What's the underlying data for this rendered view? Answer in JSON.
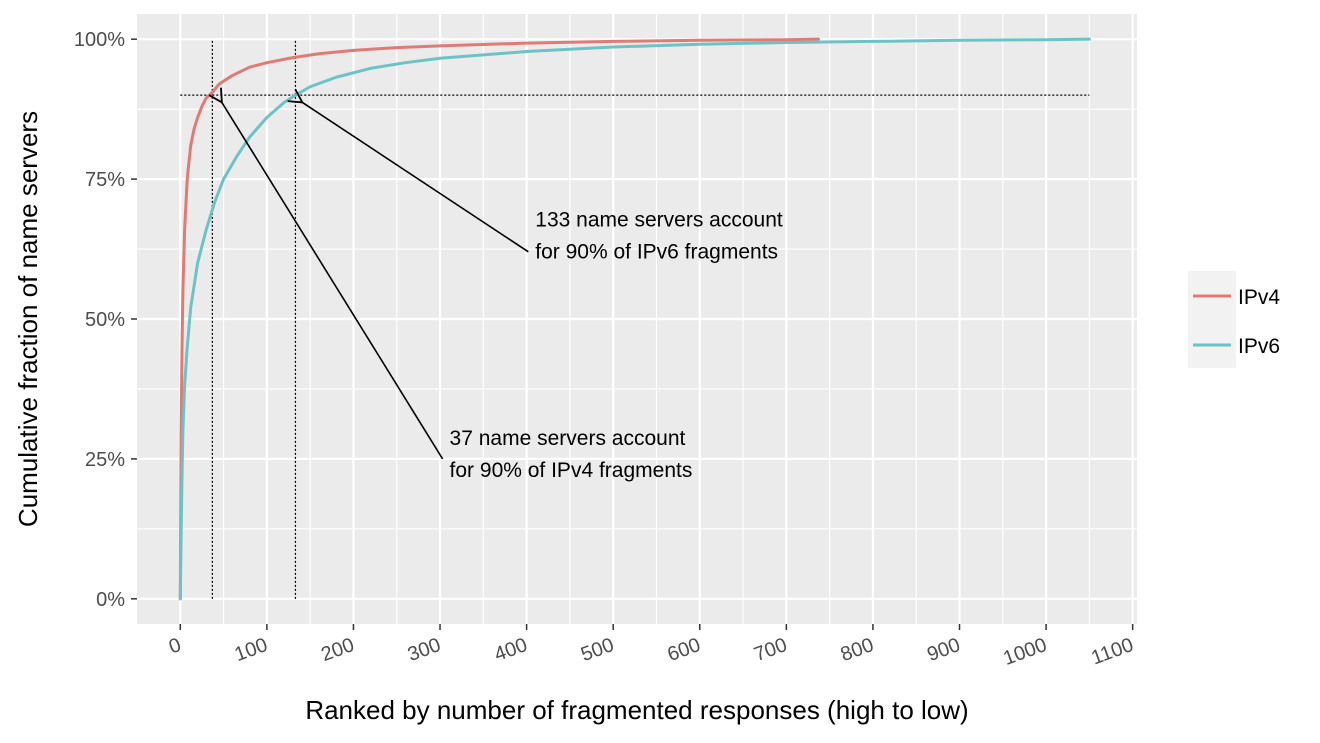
{
  "chart_data": {
    "type": "line",
    "xlabel": "Ranked by number of fragmented responses (high to low)",
    "ylabel": "Cumulative fraction of name servers",
    "xlim": [
      -50,
      1105
    ],
    "ylim": [
      -0.045,
      1.045
    ],
    "x_ticks": [
      0,
      100,
      200,
      300,
      400,
      500,
      600,
      700,
      800,
      900,
      1000,
      1100
    ],
    "x_tick_labels": [
      "0",
      "100",
      "200",
      "300",
      "400",
      "500",
      "600",
      "700",
      "800",
      "900",
      "1000",
      "1100"
    ],
    "y_ticks": [
      0,
      0.25,
      0.5,
      0.75,
      1.0
    ],
    "y_tick_labels": [
      "0%",
      "25%",
      "50%",
      "75%",
      "100%"
    ],
    "grid": true,
    "legend_position": "right",
    "series": [
      {
        "name": "IPv4",
        "color": "#E07B73",
        "x": [
          0,
          1,
          2,
          3,
          5,
          8,
          12,
          16,
          20,
          25,
          30,
          37,
          45,
          60,
          80,
          100,
          130,
          160,
          200,
          250,
          300,
          400,
          500,
          600,
          700,
          737
        ],
        "y": [
          0,
          0.3,
          0.45,
          0.55,
          0.66,
          0.75,
          0.81,
          0.84,
          0.86,
          0.88,
          0.895,
          0.905,
          0.92,
          0.935,
          0.95,
          0.958,
          0.967,
          0.974,
          0.98,
          0.985,
          0.988,
          0.993,
          0.996,
          0.998,
          0.999,
          1.0
        ]
      },
      {
        "name": "IPv6",
        "color": "#6CC3C6",
        "x": [
          0,
          1,
          2,
          3,
          5,
          8,
          12,
          20,
          30,
          40,
          50,
          65,
          80,
          100,
          120,
          133,
          150,
          180,
          220,
          260,
          300,
          400,
          500,
          600,
          700,
          800,
          900,
          1000,
          1050
        ],
        "y": [
          0,
          0.12,
          0.22,
          0.3,
          0.38,
          0.45,
          0.52,
          0.6,
          0.66,
          0.71,
          0.75,
          0.79,
          0.825,
          0.86,
          0.887,
          0.9,
          0.915,
          0.932,
          0.948,
          0.958,
          0.966,
          0.978,
          0.986,
          0.991,
          0.994,
          0.996,
          0.998,
          0.999,
          1.0
        ]
      }
    ],
    "reference_lines": {
      "horizontal_y": 0.9,
      "horizontal_x_range": [
        0,
        1050
      ],
      "vertical_x": [
        37,
        133
      ],
      "vertical_y_range": [
        0,
        1.0
      ]
    },
    "annotations": [
      {
        "lines": [
          "133 name servers account",
          "for 90% of IPv6 fragments"
        ],
        "text_x": 410,
        "text_y": 0.665,
        "arrow_from": [
          402,
          0.62
        ],
        "arrow_to": [
          141,
          0.887
        ]
      },
      {
        "lines": [
          "37 name servers account",
          "for 90% of IPv4 fragments"
        ],
        "text_x": 311,
        "text_y": 0.275,
        "arrow_from": [
          303,
          0.25
        ],
        "arrow_to": [
          48,
          0.887
        ]
      }
    ]
  }
}
